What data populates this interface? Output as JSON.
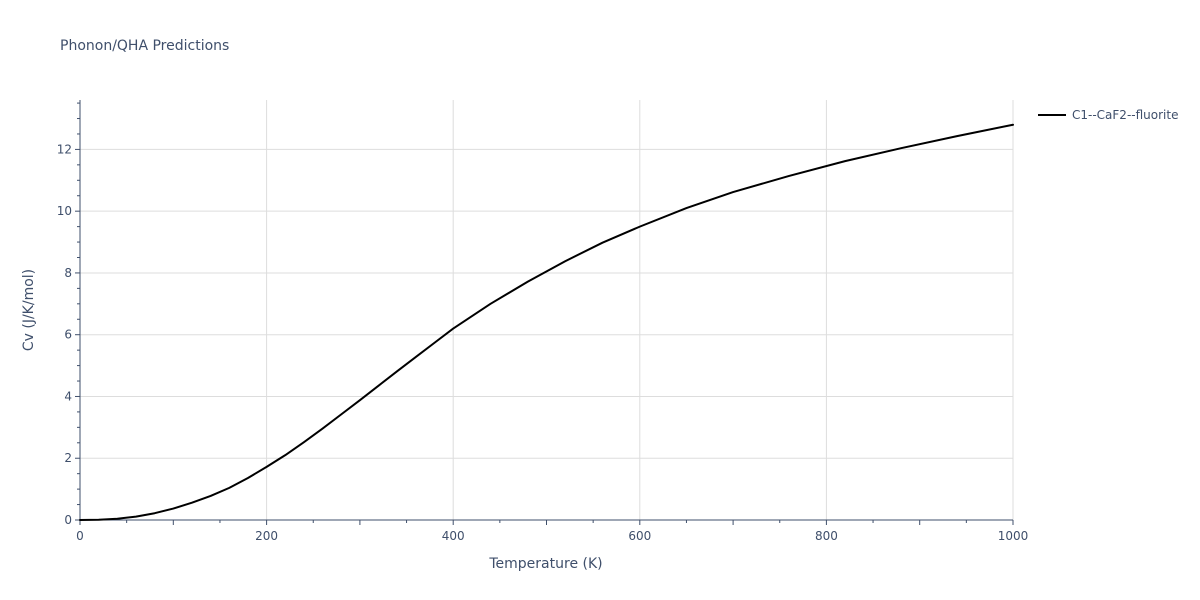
{
  "chart_data": {
    "type": "line",
    "title": "Phonon/QHA Predictions",
    "xlabel": "Temperature (K)",
    "ylabel": "Cv (J/K/mol)",
    "xlim": [
      0,
      1000
    ],
    "ylim": [
      0,
      13.6
    ],
    "x_ticks": [
      0,
      200,
      400,
      600,
      800,
      1000
    ],
    "y_ticks": [
      0,
      2,
      4,
      6,
      8,
      10,
      12
    ],
    "grid": true,
    "legend_position": "top-right",
    "colors": {
      "series": "#000000",
      "grid": "#dddddd",
      "axis": "#3f4f6b",
      "text": "#3f4f6b",
      "background": "#ffffff"
    },
    "series": [
      {
        "name": "C1--CaF2--fluorite",
        "x": [
          0,
          20,
          40,
          60,
          80,
          100,
          120,
          140,
          160,
          180,
          200,
          220,
          240,
          260,
          280,
          300,
          320,
          340,
          360,
          380,
          400,
          440,
          480,
          520,
          560,
          600,
          650,
          700,
          760,
          820,
          880,
          940,
          1000
        ],
        "y": [
          0,
          0.01,
          0.04,
          0.11,
          0.22,
          0.37,
          0.56,
          0.78,
          1.04,
          1.36,
          1.72,
          2.1,
          2.52,
          2.96,
          3.42,
          3.88,
          4.35,
          4.82,
          5.28,
          5.74,
          6.2,
          7.0,
          7.72,
          8.38,
          8.98,
          9.5,
          10.1,
          10.62,
          11.14,
          11.62,
          12.04,
          12.43,
          12.8
        ]
      }
    ]
  }
}
